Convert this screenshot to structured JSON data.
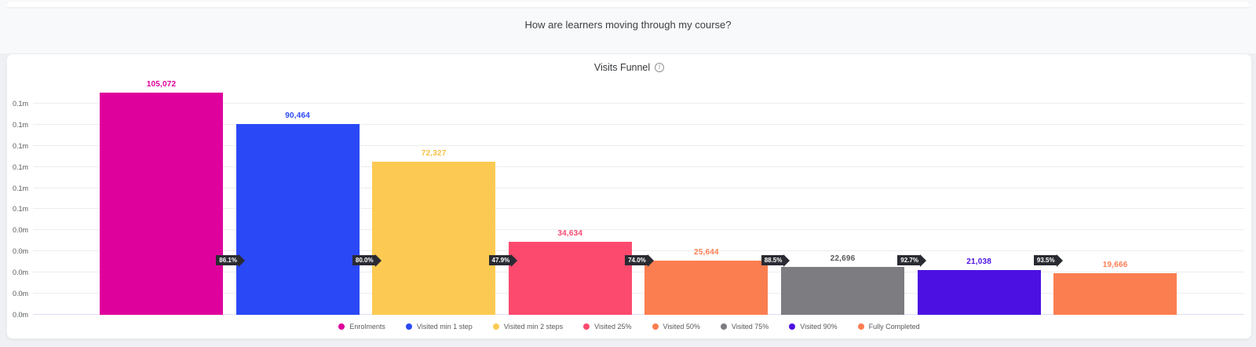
{
  "page": {
    "question_title": "How are learners moving through my course?"
  },
  "panel": {
    "title": "Visits Funnel",
    "info_icon": "info-icon"
  },
  "chart_data": {
    "type": "bar",
    "subtype": "funnel",
    "title": "Visits Funnel",
    "categories": [
      "Enrolments",
      "Visited min 1 step",
      "Visited min 2 steps",
      "Visited 25%",
      "Visited 50%",
      "Visited 75%",
      "Visited 90%",
      "Fully Completed"
    ],
    "values": [
      105072,
      90464,
      72327,
      34634,
      25644,
      22696,
      21038,
      19666
    ],
    "value_labels": [
      "105,072",
      "90,464",
      "72,327",
      "34,634",
      "25,644",
      "22,696",
      "21,038",
      "19,666"
    ],
    "bar_colors": [
      "#df019c",
      "#2a48f5",
      "#fcca52",
      "#fb4a6e",
      "#fb7e51",
      "#7d7d81",
      "#4c11e2",
      "#fb7e51"
    ],
    "value_label_colors": [
      "#df019c",
      "#2a48f5",
      "#f7c143",
      "#fb4a6e",
      "#fb7e51",
      "#58585c",
      "#4c11e2",
      "#fb7e51"
    ],
    "conversion_percents": [
      "86.1%",
      "80.0%",
      "47.9%",
      "74.0%",
      "88.5%",
      "92.7%",
      "93.5%"
    ],
    "badge_color": "#2a2a33",
    "ymax": 110000,
    "ylim": [
      0,
      110000
    ],
    "grid": true,
    "y_ticks": [
      {
        "value": 100000,
        "label": "0.1m"
      },
      {
        "value": 90000,
        "label": "0.1m"
      },
      {
        "value": 80000,
        "label": "0.1m"
      },
      {
        "value": 70000,
        "label": "0.1m"
      },
      {
        "value": 60000,
        "label": "0.1m"
      },
      {
        "value": 50000,
        "label": "0.1m"
      },
      {
        "value": 40000,
        "label": "0.0m"
      },
      {
        "value": 30000,
        "label": "0.0m"
      },
      {
        "value": 20000,
        "label": "0.0m"
      },
      {
        "value": 10000,
        "label": "0.0m"
      },
      {
        "value": 0,
        "label": "0.0m"
      }
    ],
    "legend_position": "bottom",
    "legend": [
      {
        "label": "Enrolments",
        "color": "#df019c"
      },
      {
        "label": "Visited min 1 step",
        "color": "#2a48f5"
      },
      {
        "label": "Visited min 2 steps",
        "color": "#fcca52"
      },
      {
        "label": "Visited 25%",
        "color": "#fb4a6e"
      },
      {
        "label": "Visited 50%",
        "color": "#fb7e51"
      },
      {
        "label": "Visited 75%",
        "color": "#7d7d81"
      },
      {
        "label": "Visited 90%",
        "color": "#4c11e2"
      },
      {
        "label": "Fully Completed",
        "color": "#fb7e51"
      }
    ]
  }
}
